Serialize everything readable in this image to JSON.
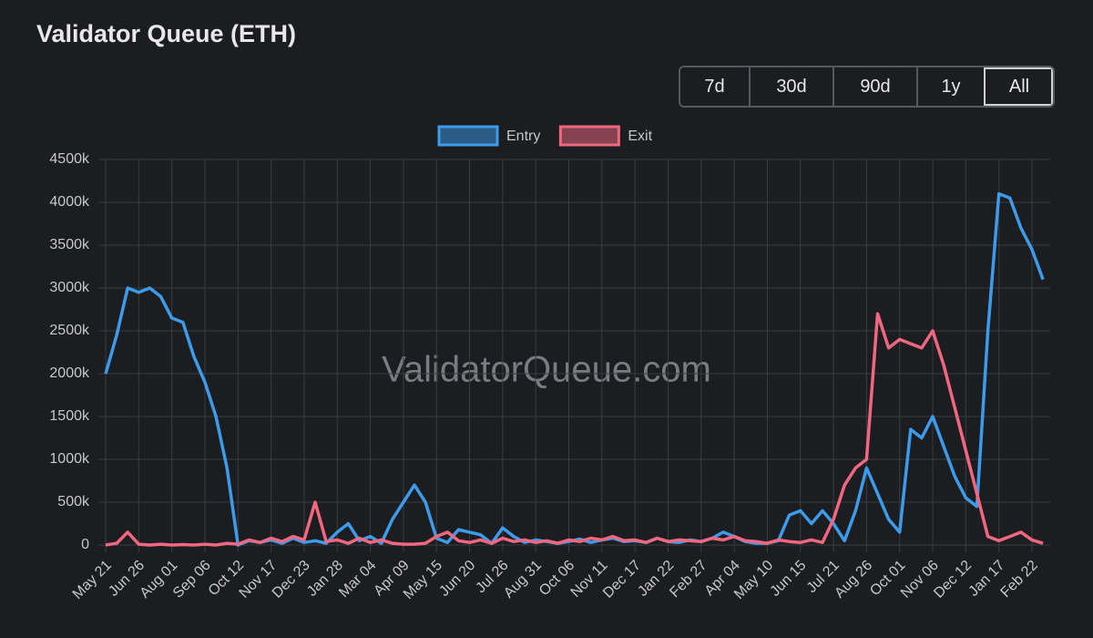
{
  "title": "Validator Queue (ETH)",
  "buttons": [
    "7d",
    "30d",
    "90d",
    "1y",
    "All"
  ],
  "active_button": "All",
  "watermark": "ValidatorQueue.com",
  "chart_data": {
    "type": "line",
    "legend": "top",
    "categories": [
      "May 21",
      null,
      null,
      "Jun 26",
      null,
      null,
      "Aug 01",
      null,
      null,
      "Sep 06",
      null,
      null,
      "Oct 12",
      null,
      null,
      "Nov 17",
      null,
      null,
      "Dec 23",
      null,
      null,
      "Jan 28",
      null,
      null,
      "Mar 04",
      null,
      null,
      "Apr 09",
      null,
      null,
      "May 15",
      null,
      null,
      "Jun 20",
      null,
      null,
      "Jul 26",
      null,
      null,
      "Aug 31",
      null,
      null,
      "Oct 06",
      null,
      null,
      "Nov 11",
      null,
      null,
      "Dec 17",
      null,
      null,
      "Jan 22",
      null,
      null,
      "Feb 27",
      null,
      null,
      "Apr 04",
      null,
      null,
      "May 10",
      null,
      null,
      "Jun 15",
      null,
      null,
      "Jul 21",
      null,
      null,
      "Aug 26",
      null,
      null,
      "Oct 01",
      null,
      null,
      "Nov 06",
      null,
      null,
      "Dec 12",
      null,
      null,
      "Jan 17",
      null,
      null,
      "Feb 22",
      null
    ],
    "series": [
      {
        "name": "Entry",
        "color": "#3d9be9",
        "values": [
          2000000,
          2450000,
          3000000,
          2950000,
          3000000,
          2900000,
          2650000,
          2600000,
          2200000,
          1900000,
          1500000,
          900000,
          0,
          50000,
          30000,
          60000,
          20000,
          80000,
          30000,
          50000,
          20000,
          150000,
          250000,
          50000,
          100000,
          20000,
          300000,
          500000,
          700000,
          500000,
          80000,
          30000,
          180000,
          150000,
          120000,
          20000,
          200000,
          100000,
          30000,
          60000,
          40000,
          20000,
          40000,
          70000,
          30000,
          60000,
          80000,
          40000,
          50000,
          30000,
          80000,
          40000,
          30000,
          60000,
          40000,
          80000,
          150000,
          100000,
          40000,
          20000,
          20000,
          50000,
          350000,
          400000,
          250000,
          400000,
          250000,
          50000,
          400000,
          900000,
          600000,
          300000,
          150000,
          1350000,
          1250000,
          1500000,
          1150000,
          800000,
          550000,
          450000,
          2500000,
          4100000,
          4050000,
          3700000,
          3450000,
          3100000
        ]
      },
      {
        "name": "Exit",
        "color": "#f0677f",
        "values": [
          0,
          20000,
          150000,
          10000,
          0,
          10000,
          0,
          5000,
          0,
          10000,
          0,
          20000,
          10000,
          60000,
          30000,
          80000,
          40000,
          100000,
          60000,
          500000,
          40000,
          60000,
          20000,
          80000,
          30000,
          60000,
          20000,
          10000,
          10000,
          20000,
          100000,
          150000,
          50000,
          30000,
          60000,
          20000,
          80000,
          40000,
          60000,
          30000,
          50000,
          20000,
          60000,
          40000,
          80000,
          60000,
          100000,
          50000,
          60000,
          30000,
          80000,
          40000,
          60000,
          50000,
          40000,
          80000,
          60000,
          100000,
          50000,
          40000,
          20000,
          60000,
          40000,
          30000,
          60000,
          30000,
          300000,
          700000,
          900000,
          1000000,
          2700000,
          2300000,
          2400000,
          2350000,
          2300000,
          2500000,
          2100000,
          1600000,
          1100000,
          600000,
          100000,
          50000,
          100000,
          150000,
          60000,
          20000
        ]
      }
    ],
    "ylim": [
      0,
      4500000
    ],
    "yticks": [
      0,
      {
        "value": 500000,
        "label": "500k"
      },
      {
        "value": 1000000,
        "label": "1000k"
      },
      {
        "value": 1500000,
        "label": "1500k"
      },
      {
        "value": 2000000,
        "label": "2000k"
      },
      {
        "value": 2500000,
        "label": "2500k"
      },
      {
        "value": 3000000,
        "label": "3000k"
      },
      {
        "value": 3500000,
        "label": "3500k"
      },
      {
        "value": 4000000,
        "label": "4000k"
      },
      {
        "value": 4500000,
        "label": "4500k"
      }
    ],
    "grid": true
  }
}
